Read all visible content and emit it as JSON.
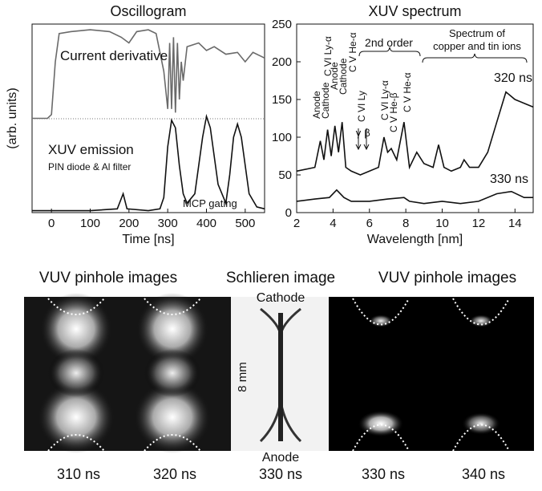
{
  "chart_data": [
    {
      "type": "line",
      "title": "Oscillogram",
      "x_label": "Time [ns]",
      "y_label": "(arb. units)",
      "xlim": [
        -50,
        550
      ],
      "xticks": [
        0,
        100,
        200,
        300,
        400,
        500
      ],
      "ylim": [
        0,
        100
      ],
      "series": [
        {
          "name": "Current derivative",
          "color": "#6a6a6a",
          "x": [
            -50,
            -10,
            0,
            10,
            20,
            50,
            100,
            150,
            180,
            200,
            220,
            250,
            270,
            290,
            300,
            305,
            310,
            315,
            320,
            325,
            330,
            335,
            340,
            350,
            380,
            400,
            420,
            450,
            480,
            500,
            520,
            550
          ],
          "values": [
            50,
            50,
            52,
            80,
            95,
            96,
            97,
            96,
            93,
            90,
            96,
            97,
            95,
            75,
            55,
            90,
            55,
            93,
            53,
            90,
            60,
            80,
            70,
            88,
            90,
            86,
            88,
            84,
            85,
            80,
            85,
            82
          ]
        },
        {
          "name": "XUV emission",
          "color": "#111111",
          "x": [
            -50,
            0,
            100,
            170,
            185,
            195,
            250,
            280,
            290,
            300,
            310,
            320,
            330,
            340,
            350,
            370,
            390,
            400,
            410,
            430,
            450,
            460,
            470,
            480,
            490,
            510,
            530,
            550
          ],
          "values": [
            1,
            1,
            1,
            2,
            10,
            2,
            1,
            2,
            8,
            35,
            49,
            45,
            25,
            10,
            5,
            10,
            40,
            51,
            45,
            15,
            5,
            20,
            40,
            47,
            40,
            10,
            3,
            2
          ]
        }
      ],
      "annotations": [
        "PIN diode & Al filter",
        "MCP gating"
      ]
    },
    {
      "type": "line",
      "title": "XUV spectrum",
      "x_label": "Wavelength [nm]",
      "xlim": [
        2,
        15
      ],
      "xticks": [
        2,
        4,
        6,
        8,
        10,
        12,
        14
      ],
      "ylim": [
        0,
        250
      ],
      "yticks": [
        0,
        50,
        100,
        150,
        200,
        250
      ],
      "series": [
        {
          "name": "320 ns",
          "color": "#111111",
          "x": [
            2,
            3,
            3.3,
            3.5,
            3.7,
            3.9,
            4.1,
            4.3,
            4.5,
            4.7,
            5,
            5.5,
            6,
            6.5,
            6.8,
            7,
            7.2,
            7.5,
            7.9,
            8.2,
            8.6,
            9,
            9.5,
            9.8,
            10.1,
            10.5,
            11,
            11.2,
            11.5,
            12,
            12.5,
            13,
            13.5,
            14,
            14.5,
            15
          ],
          "values": [
            55,
            60,
            95,
            70,
            110,
            75,
            115,
            80,
            120,
            60,
            55,
            50,
            55,
            60,
            100,
            80,
            85,
            70,
            120,
            60,
            80,
            65,
            60,
            90,
            60,
            55,
            60,
            70,
            60,
            60,
            80,
            120,
            160,
            150,
            145,
            140
          ]
        },
        {
          "name": "330 ns",
          "color": "#111111",
          "x": [
            2,
            3,
            3.8,
            4.2,
            4.6,
            5,
            6,
            7,
            7.9,
            8.2,
            9,
            10,
            11,
            12,
            13,
            13.8,
            14.5,
            15
          ],
          "values": [
            15,
            18,
            20,
            30,
            20,
            15,
            15,
            18,
            20,
            15,
            12,
            15,
            12,
            15,
            25,
            28,
            20,
            20
          ]
        }
      ],
      "annotations": [
        "Anode",
        "Cathode",
        "C VI Ly-α",
        "Anode",
        "Cathode",
        "C V He-α",
        "2nd order",
        "C VI Ly",
        "γ",
        "β",
        "C VI Ly-α",
        "C V He-β",
        "C V He-α",
        "Spectrum of",
        "copper and tin ions"
      ]
    }
  ],
  "images": {
    "panels": [
      {
        "title": "VUV pinhole images",
        "labels": [
          "310 ns",
          "320 ns"
        ]
      },
      {
        "title": "Schlieren image",
        "labels": [
          "330 ns"
        ],
        "annotations": [
          "Cathode",
          "Anode",
          "8 mm"
        ]
      },
      {
        "title": "VUV pinhole images",
        "labels": [
          "330 ns",
          "340 ns"
        ]
      }
    ]
  }
}
